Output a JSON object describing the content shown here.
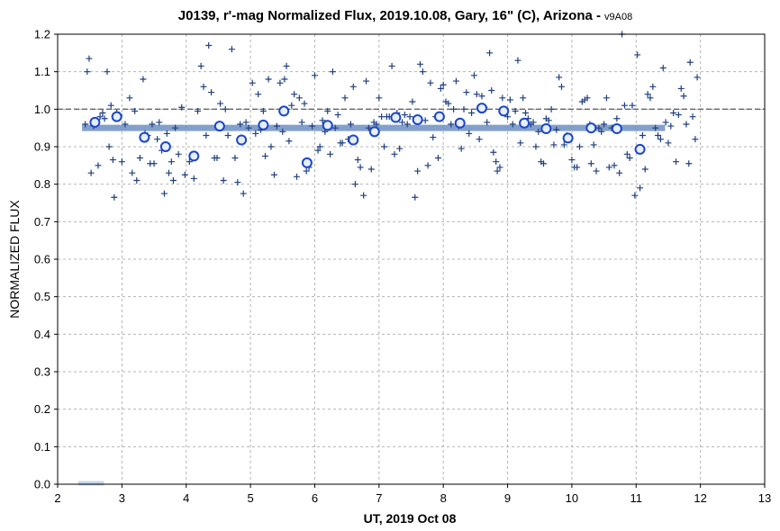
{
  "chart_data": {
    "type": "scatter",
    "title": "J0139, r'-mag Normalized Flux, 2019.10.08, Gary, 16\" (C), Arizona -",
    "title_version": "v9A08",
    "xlabel": "UT, 2019 Oct 08",
    "ylabel": "NORMALIZED FLUX",
    "xlim": [
      2,
      13
    ],
    "ylim": [
      0.0,
      1.2
    ],
    "x_ticks": [
      "2",
      "3",
      "4",
      "5",
      "6",
      "7",
      "8",
      "9",
      "10",
      "11",
      "12",
      "13"
    ],
    "y_ticks": [
      "0.0",
      "0.1",
      "0.2",
      "0.3",
      "0.4",
      "0.5",
      "0.6",
      "0.7",
      "0.8",
      "0.9",
      "1.0",
      "1.1",
      "1.2"
    ],
    "grid": true,
    "reference_line": {
      "y": 1.0,
      "style": "dashed",
      "color": "#666666"
    },
    "colors": {
      "individual": "#1f3f7f",
      "average_fill": "#e8eef8",
      "average_edge": "#1a46c8",
      "fit_line": "#6d8fc2",
      "legend_swatch": "#c5d6ea"
    },
    "fit_line": {
      "x": [
        2.38,
        11.45
      ],
      "y": [
        0.95,
        0.95
      ]
    },
    "legend_swatch": {
      "x": [
        2.32,
        2.72
      ],
      "y": 0.0
    },
    "series": [
      {
        "marker": "plus",
        "values": [
          [
            2.43,
            0.96
          ],
          [
            2.46,
            1.1
          ],
          [
            2.49,
            1.135
          ],
          [
            2.52,
            0.83
          ],
          [
            2.56,
            0.955
          ],
          [
            2.6,
            0.96
          ],
          [
            2.63,
            0.85
          ],
          [
            2.66,
            0.98
          ],
          [
            2.7,
            0.99
          ],
          [
            2.73,
            0.975
          ],
          [
            2.77,
            1.1
          ],
          [
            2.8,
            0.9
          ],
          [
            2.83,
            1.01
          ],
          [
            2.86,
            0.865
          ],
          [
            2.88,
            0.765
          ],
          [
            2.92,
            0.99
          ],
          [
            2.96,
            0.985
          ],
          [
            3.0,
            0.86
          ],
          [
            3.05,
            0.96
          ],
          [
            3.12,
            1.03
          ],
          [
            3.16,
            0.83
          ],
          [
            3.2,
            0.995
          ],
          [
            3.23,
            0.81
          ],
          [
            3.28,
            0.87
          ],
          [
            3.33,
            1.08
          ],
          [
            3.36,
            0.935
          ],
          [
            3.4,
            0.93
          ],
          [
            3.44,
            0.855
          ],
          [
            3.47,
            0.96
          ],
          [
            3.5,
            0.855
          ],
          [
            3.55,
            0.92
          ],
          [
            3.58,
            0.965
          ],
          [
            3.62,
            0.89
          ],
          [
            3.66,
            0.775
          ],
          [
            3.7,
            0.935
          ],
          [
            3.73,
            0.83
          ],
          [
            3.77,
            0.86
          ],
          [
            3.8,
            0.81
          ],
          [
            3.83,
            0.95
          ],
          [
            3.88,
            0.88
          ],
          [
            3.93,
            1.005
          ],
          [
            3.98,
            0.825
          ],
          [
            4.05,
            0.86
          ],
          [
            4.12,
            0.815
          ],
          [
            4.18,
            0.995
          ],
          [
            4.23,
            1.115
          ],
          [
            4.27,
            1.06
          ],
          [
            4.31,
            0.93
          ],
          [
            4.35,
            1.17
          ],
          [
            4.39,
            1.045
          ],
          [
            4.44,
            0.87
          ],
          [
            4.48,
            0.87
          ],
          [
            4.53,
            1.015
          ],
          [
            4.58,
            0.81
          ],
          [
            4.61,
            1.0
          ],
          [
            4.65,
            0.93
          ],
          [
            4.71,
            1.16
          ],
          [
            4.76,
            0.87
          ],
          [
            4.8,
            0.805
          ],
          [
            4.84,
            0.96
          ],
          [
            4.89,
            0.775
          ],
          [
            4.93,
            0.965
          ],
          [
            4.97,
            0.95
          ],
          [
            5.03,
            1.07
          ],
          [
            5.08,
            0.935
          ],
          [
            5.12,
            1.04
          ],
          [
            5.16,
            0.945
          ],
          [
            5.2,
            0.995
          ],
          [
            5.23,
            0.875
          ],
          [
            5.28,
            1.08
          ],
          [
            5.32,
            0.9
          ],
          [
            5.37,
            0.825
          ],
          [
            5.41,
            0.955
          ],
          [
            5.46,
            1.07
          ],
          [
            5.5,
            0.94
          ],
          [
            5.53,
            1.08
          ],
          [
            5.56,
            1.115
          ],
          [
            5.6,
            0.915
          ],
          [
            5.64,
            1.01
          ],
          [
            5.68,
            1.04
          ],
          [
            5.72,
            0.82
          ],
          [
            5.76,
            1.03
          ],
          [
            5.8,
            0.965
          ],
          [
            5.84,
            1.015
          ],
          [
            5.87,
            0.835
          ],
          [
            5.91,
            0.845
          ],
          [
            5.96,
            0.955
          ],
          [
            6.0,
            1.09
          ],
          [
            6.05,
            0.89
          ],
          [
            6.08,
            0.9
          ],
          [
            6.12,
            0.97
          ],
          [
            6.16,
            0.94
          ],
          [
            6.2,
            0.995
          ],
          [
            6.24,
            0.88
          ],
          [
            6.28,
            1.1
          ],
          [
            6.32,
            0.95
          ],
          [
            6.36,
            0.985
          ],
          [
            6.4,
            0.91
          ],
          [
            6.43,
            0.91
          ],
          [
            6.47,
            1.03
          ],
          [
            6.52,
            0.92
          ],
          [
            6.56,
            0.96
          ],
          [
            6.6,
            1.06
          ],
          [
            6.63,
            0.8
          ],
          [
            6.67,
            0.865
          ],
          [
            6.71,
            0.845
          ],
          [
            6.76,
            0.77
          ],
          [
            6.8,
            1.075
          ],
          [
            6.84,
            0.95
          ],
          [
            6.88,
            0.84
          ],
          [
            6.92,
            0.965
          ],
          [
            6.96,
            0.96
          ],
          [
            7.0,
            1.03
          ],
          [
            7.04,
            0.98
          ],
          [
            7.08,
            0.9
          ],
          [
            7.12,
            0.98
          ],
          [
            7.16,
            0.98
          ],
          [
            7.2,
            1.115
          ],
          [
            7.24,
            0.88
          ],
          [
            7.28,
            0.99
          ],
          [
            7.32,
            0.895
          ],
          [
            7.36,
            0.965
          ],
          [
            7.4,
            0.985
          ],
          [
            7.44,
            0.96
          ],
          [
            7.48,
            0.98
          ],
          [
            7.52,
            1.02
          ],
          [
            7.56,
            0.765
          ],
          [
            7.6,
            0.835
          ],
          [
            7.64,
            1.12
          ],
          [
            7.68,
            1.1
          ],
          [
            7.72,
            0.97
          ],
          [
            7.76,
            0.85
          ],
          [
            7.8,
            1.07
          ],
          [
            7.84,
            0.925
          ],
          [
            7.88,
            0.98
          ],
          [
            7.92,
            0.87
          ],
          [
            7.96,
            1.055
          ],
          [
            8.0,
            1.065
          ],
          [
            8.04,
            1.02
          ],
          [
            8.08,
            1.015
          ],
          [
            8.12,
            0.96
          ],
          [
            8.16,
            1.0
          ],
          [
            8.2,
            1.075
          ],
          [
            8.24,
            0.955
          ],
          [
            8.28,
            0.895
          ],
          [
            8.32,
            1.0
          ],
          [
            8.36,
            1.045
          ],
          [
            8.4,
            0.935
          ],
          [
            8.44,
            0.99
          ],
          [
            8.48,
            1.09
          ],
          [
            8.52,
            1.04
          ],
          [
            8.56,
            0.92
          ],
          [
            8.6,
            1.035
          ],
          [
            8.64,
            1.005
          ],
          [
            8.68,
            0.965
          ],
          [
            8.72,
            1.15
          ],
          [
            8.75,
            1.05
          ],
          [
            8.78,
            0.885
          ],
          [
            8.82,
            0.86
          ],
          [
            8.84,
            0.835
          ],
          [
            8.88,
            0.845
          ],
          [
            8.92,
            1.03
          ],
          [
            8.96,
            0.995
          ],
          [
            9.0,
            0.98
          ],
          [
            9.04,
            1.025
          ],
          [
            9.08,
            0.96
          ],
          [
            9.12,
            0.995
          ],
          [
            9.16,
            1.13
          ],
          [
            9.2,
            0.91
          ],
          [
            9.24,
            1.03
          ],
          [
            9.28,
            0.99
          ],
          [
            9.32,
            0.975
          ],
          [
            9.36,
            0.96
          ],
          [
            9.4,
            0.965
          ],
          [
            9.44,
            0.9
          ],
          [
            9.48,
            0.94
          ],
          [
            9.52,
            0.86
          ],
          [
            9.56,
            0.855
          ],
          [
            9.6,
            0.975
          ],
          [
            9.64,
            0.97
          ],
          [
            9.68,
            1.0
          ],
          [
            9.72,
            0.905
          ],
          [
            9.76,
            0.945
          ],
          [
            9.8,
            1.085
          ],
          [
            9.84,
            1.06
          ],
          [
            9.88,
            0.905
          ],
          [
            9.92,
            0.93
          ],
          [
            9.96,
            0.92
          ],
          [
            10.0,
            0.865
          ],
          [
            10.04,
            0.845
          ],
          [
            10.08,
            0.845
          ],
          [
            10.12,
            0.9
          ],
          [
            10.16,
            1.02
          ],
          [
            10.2,
            1.025
          ],
          [
            10.24,
            1.03
          ],
          [
            10.28,
            0.96
          ],
          [
            10.3,
            0.855
          ],
          [
            10.34,
            0.905
          ],
          [
            10.38,
            0.835
          ],
          [
            10.42,
            0.95
          ],
          [
            10.46,
            0.94
          ],
          [
            10.5,
            0.96
          ],
          [
            10.54,
            1.03
          ],
          [
            10.58,
            0.845
          ],
          [
            10.62,
            0.95
          ],
          [
            10.66,
            0.85
          ],
          [
            10.7,
            0.975
          ],
          [
            10.74,
            0.83
          ],
          [
            10.78,
            1.2
          ],
          [
            10.82,
            1.01
          ],
          [
            10.86,
            0.88
          ],
          [
            10.9,
            0.87
          ],
          [
            10.94,
            1.01
          ],
          [
            10.98,
            0.77
          ],
          [
            11.02,
            1.145
          ],
          [
            11.06,
            0.79
          ],
          [
            11.1,
            0.93
          ],
          [
            11.14,
            0.84
          ],
          [
            11.18,
            1.04
          ],
          [
            11.22,
            1.03
          ],
          [
            11.26,
            1.06
          ],
          [
            11.3,
            0.95
          ],
          [
            11.34,
            0.93
          ],
          [
            11.38,
            0.92
          ],
          [
            11.42,
            1.11
          ],
          [
            11.46,
            0.965
          ],
          [
            11.5,
            0.91
          ],
          [
            11.54,
            0.955
          ],
          [
            11.58,
            0.99
          ],
          [
            11.62,
            0.86
          ],
          [
            11.66,
            0.985
          ],
          [
            11.7,
            1.055
          ],
          [
            11.74,
            1.035
          ],
          [
            11.78,
            0.96
          ],
          [
            11.82,
            0.855
          ],
          [
            11.84,
            1.125
          ],
          [
            11.88,
            0.98
          ],
          [
            11.92,
            0.92
          ],
          [
            11.95,
            1.085
          ]
        ]
      },
      {
        "marker": "open-circle",
        "values": [
          [
            2.58,
            0.965
          ],
          [
            2.92,
            0.98
          ],
          [
            3.35,
            0.925
          ],
          [
            3.68,
            0.9
          ],
          [
            4.12,
            0.875
          ],
          [
            4.52,
            0.955
          ],
          [
            4.86,
            0.918
          ],
          [
            5.2,
            0.958
          ],
          [
            5.52,
            0.995
          ],
          [
            5.88,
            0.857
          ],
          [
            6.2,
            0.957
          ],
          [
            6.6,
            0.918
          ],
          [
            6.93,
            0.94
          ],
          [
            7.26,
            0.978
          ],
          [
            7.6,
            0.972
          ],
          [
            7.94,
            0.98
          ],
          [
            8.26,
            0.963
          ],
          [
            8.6,
            1.003
          ],
          [
            8.94,
            0.995
          ],
          [
            9.26,
            0.963
          ],
          [
            9.6,
            0.948
          ],
          [
            9.94,
            0.923
          ],
          [
            10.3,
            0.95
          ],
          [
            10.7,
            0.948
          ],
          [
            11.06,
            0.893
          ]
        ]
      }
    ]
  }
}
